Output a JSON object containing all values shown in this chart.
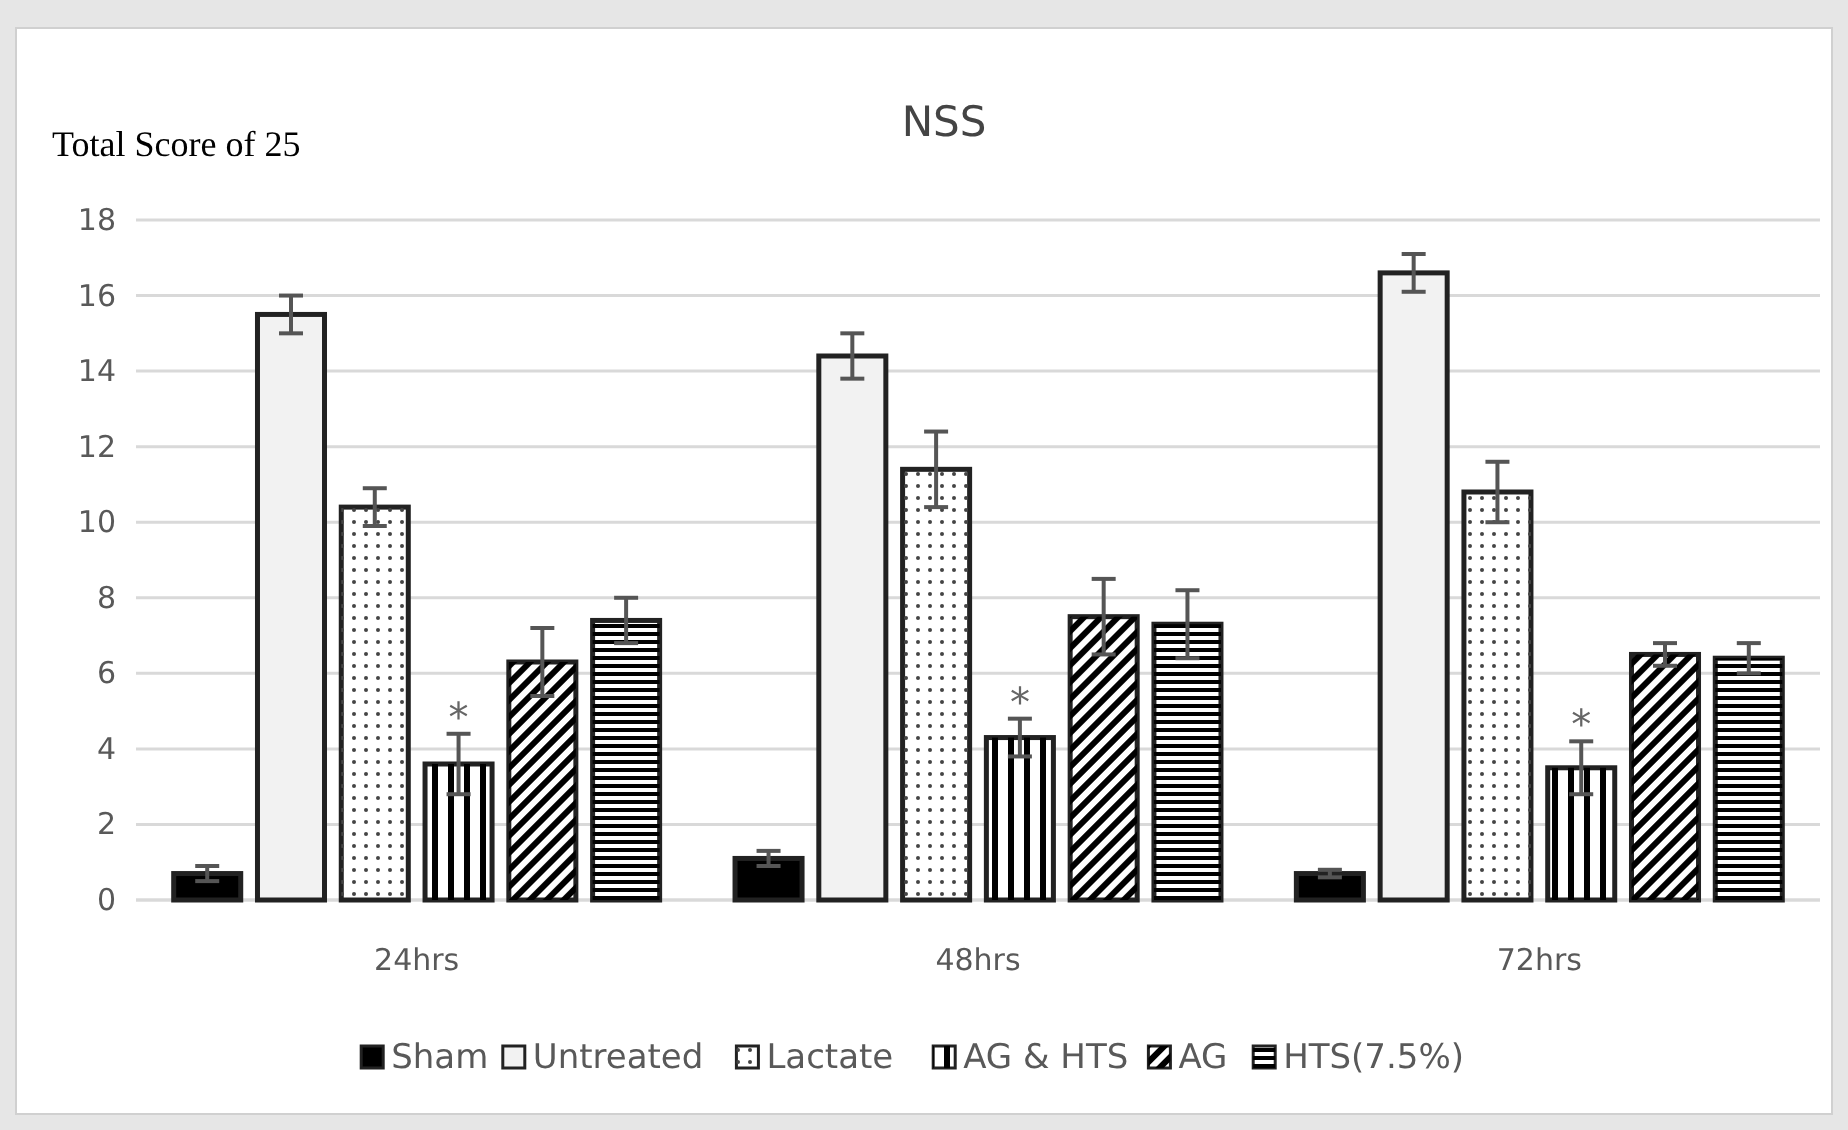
{
  "chart_data": {
    "type": "bar",
    "title": "NSS",
    "ylabel": "Total Score of 25",
    "categories": [
      "24hrs",
      "48hrs",
      "72hrs"
    ],
    "series": [
      {
        "name": "Sham",
        "color": "#000000",
        "values": [
          0.7,
          1.1,
          0.7
        ],
        "errors": [
          0.2,
          0.2,
          0.1
        ]
      },
      {
        "name": "Untreated",
        "color": "#f2f2f2",
        "values": [
          15.5,
          14.4,
          16.6
        ],
        "errors": [
          0.5,
          0.6,
          0.5
        ]
      },
      {
        "name": "Lactate",
        "color": "#ffffff",
        "values": [
          10.4,
          11.4,
          10.8
        ],
        "errors": [
          0.5,
          1.0,
          0.8
        ]
      },
      {
        "name": "AG & HTS",
        "color": "#ffffff",
        "values": [
          3.6,
          4.3,
          3.5
        ],
        "errors": [
          0.8,
          0.5,
          0.7
        ]
      },
      {
        "name": "AG",
        "color": "#ffffff",
        "values": [
          6.3,
          7.5,
          6.5
        ],
        "errors": [
          0.9,
          1.0,
          0.3
        ]
      },
      {
        "name": "HTS(7.5%)",
        "color": "#ffffff",
        "values": [
          7.4,
          7.3,
          6.4
        ],
        "errors": [
          0.6,
          0.9,
          0.4
        ]
      }
    ],
    "annotations": [
      {
        "text": "*",
        "x": "24hrs",
        "y": 4.9
      },
      {
        "text": "*",
        "x": "48hrs",
        "y": 5.3
      },
      {
        "text": "*",
        "x": "72hrs",
        "y": 4.7
      }
    ],
    "ylim": [
      0,
      18
    ],
    "yticks": [
      0,
      2,
      4,
      6,
      8,
      10,
      12,
      14,
      16,
      18
    ],
    "grid": "y",
    "legend": "bottom"
  }
}
